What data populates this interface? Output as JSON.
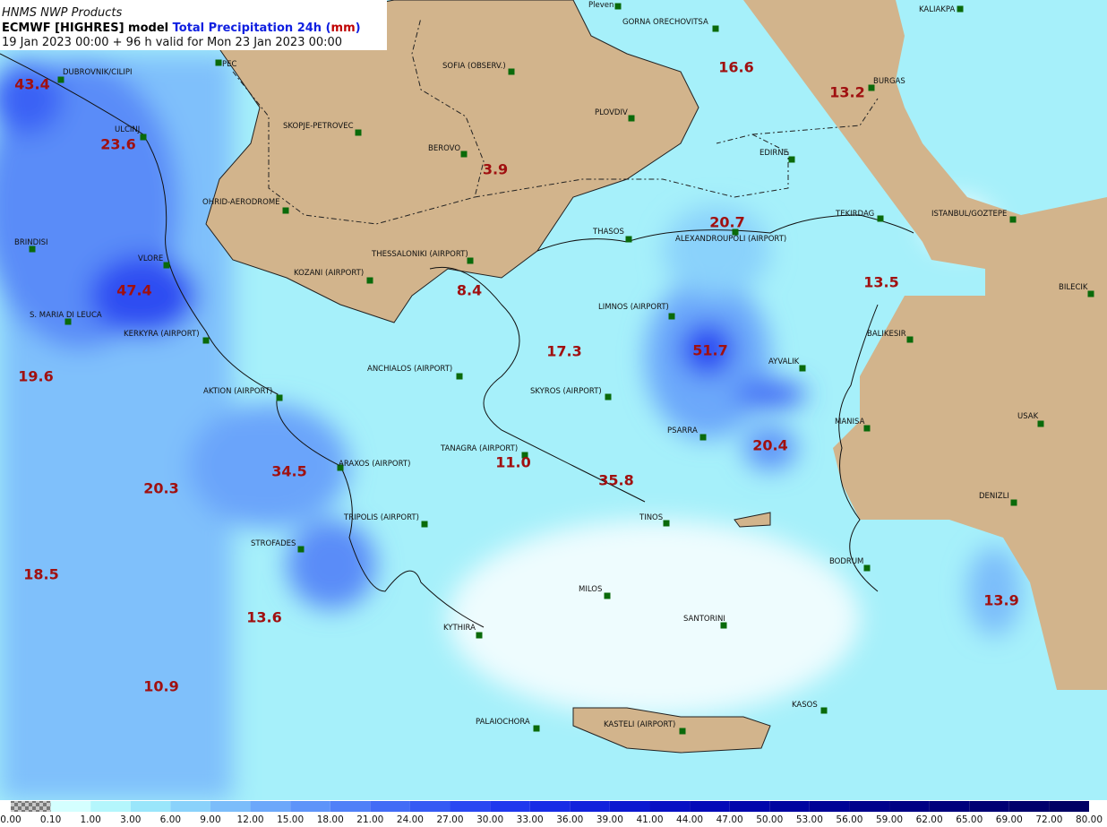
{
  "header": {
    "line1": "HNMS NWP Products",
    "line2_model": "ECMWF [HIGHRES] model ",
    "line2_field": "Total Precipitation 24h (",
    "line2_unit": "mm",
    "line2_close": ")",
    "line3": "19 Jan 2023 00:00 + 96 h valid for Mon 23 Jan 2023 00:00"
  },
  "stations": [
    "DUBROVNIK/CILIPI",
    "PEC",
    "SOFIA (OBSERV.)",
    "Pleven",
    "GORNA ORECHOVITSA",
    "KALIAKPA",
    "BURGAS",
    "PLOVDIV",
    "SKOPJE-PETROVEC",
    "ULCINJ",
    "BEROVO",
    "EDIRNE",
    "OHRID-AERODROME",
    "TEKIRDAG",
    "ISTANBUL/GOZTEPE",
    "BRINDISI",
    "THASOS",
    "ALEXANDROUPOLI (AIRPORT)",
    "THESSALONIKI (AIRPORT)",
    "VLORE",
    "KOZANI (AIRPORT)",
    "BILECIK",
    "LIMNOS (AIRPORT)",
    "S. MARIA DI LEUCA",
    "KERKYRA (AIRPORT)",
    "BALIKESIR",
    "AYVALIK",
    "ANCHIALOS (AIRPORT)",
    "AKTION (AIRPORT)",
    "SKYROS (AIRPORT)",
    "USAK",
    "MANISA",
    "PSARRA",
    "TANAGRA (AIRPORT)",
    "ARAXOS (AIRPORT)",
    "DENIZLI",
    "TINOS",
    "TRIPOLIS (AIRPORT)",
    "STROFADES",
    "BODRUM",
    "MILOS",
    "SANTORINI",
    "KYTHIRA",
    "KASOS",
    "PALAIOCHORA",
    "KASTELI (AIRPORT)"
  ],
  "values": [
    "43.4",
    "23.6",
    "16.6",
    "13.2",
    "3.9",
    "20.7",
    "13.5",
    "8.4",
    "47.4",
    "17.3",
    "51.7",
    "19.6",
    "20.4",
    "11.0",
    "34.5",
    "35.8",
    "20.3",
    "18.5",
    "13.6",
    "13.9",
    "10.9"
  ],
  "colorbar": {
    "labels": [
      "0.00",
      "0.10",
      "1.00",
      "3.00",
      "6.00",
      "9.00",
      "12.00",
      "15.00",
      "18.00",
      "21.00",
      "24.00",
      "27.00",
      "30.00",
      "33.00",
      "36.00",
      "39.00",
      "41.00",
      "44.00",
      "47.00",
      "50.00",
      "53.00",
      "56.00",
      "59.00",
      "62.00",
      "65.00",
      "69.00",
      "72.00",
      "80.00"
    ],
    "colors": [
      "#9a9a9a",
      "#d4ffff",
      "#b4f6fc",
      "#9ae6fb",
      "#8ad2fb",
      "#7bbdfa",
      "#6ca8fa",
      "#5e94f9",
      "#5080f8",
      "#426cf6",
      "#355af4",
      "#2a48f2",
      "#2038ee",
      "#182ce6",
      "#1222dc",
      "#0c18d0",
      "#0810c4",
      "#040ab8",
      "#0206ac",
      "#0004a0",
      "#000296",
      "#00018c",
      "#000084",
      "#00007c",
      "#000074",
      "#00006c",
      "#000064"
    ]
  }
}
